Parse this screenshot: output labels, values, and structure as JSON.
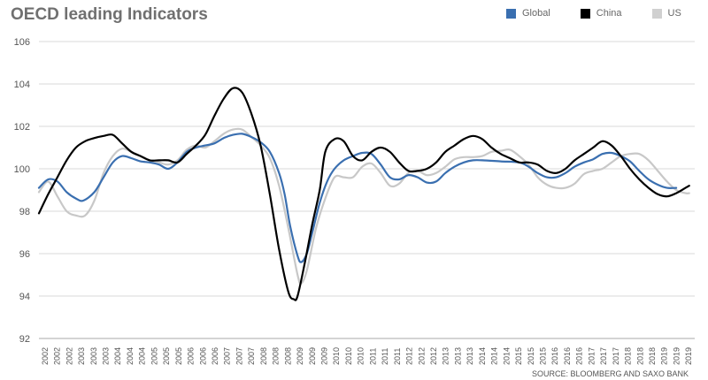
{
  "chart_data": {
    "type": "line",
    "title": "OECD leading Indicators",
    "source": "SOURCE: BLOOMBERG AND SAXO BANK",
    "ylim": [
      92,
      106
    ],
    "yticks": [
      92,
      94,
      96,
      98,
      100,
      102,
      104,
      106
    ],
    "xlim": [
      2002.0,
      2019.75
    ],
    "xtick_labels": [
      "2002",
      "2002",
      "2002",
      "2003",
      "2003",
      "2003",
      "2004",
      "2004",
      "2004",
      "2005",
      "2005",
      "2005",
      "2006",
      "2006",
      "2006",
      "2007",
      "2007",
      "2007",
      "2008",
      "2008",
      "2008",
      "2009",
      "2009",
      "2009",
      "2010",
      "2010",
      "2010",
      "2011",
      "2011",
      "2011",
      "2012",
      "2012",
      "2012",
      "2013",
      "2013",
      "2013",
      "2014",
      "2014",
      "2014",
      "2015",
      "2015",
      "2015",
      "2016",
      "2016",
      "2016",
      "2017",
      "2017",
      "2017",
      "2018",
      "2018",
      "2018",
      "2019",
      "2019",
      "2019"
    ],
    "grid": true,
    "legend_position": "top-right",
    "series": [
      {
        "name": "Global",
        "color": "#3a6fb0",
        "points": [
          [
            2002.0,
            99.1
          ],
          [
            2002.25,
            99.5
          ],
          [
            2002.5,
            99.4
          ],
          [
            2002.75,
            98.9
          ],
          [
            2003.0,
            98.6
          ],
          [
            2003.2,
            98.5
          ],
          [
            2003.5,
            98.9
          ],
          [
            2003.75,
            99.6
          ],
          [
            2004.0,
            100.3
          ],
          [
            2004.25,
            100.6
          ],
          [
            2004.5,
            100.5
          ],
          [
            2004.75,
            100.35
          ],
          [
            2005.0,
            100.3
          ],
          [
            2005.25,
            100.2
          ],
          [
            2005.5,
            100.0
          ],
          [
            2005.75,
            100.3
          ],
          [
            2006.0,
            100.8
          ],
          [
            2006.25,
            101.0
          ],
          [
            2006.5,
            101.1
          ],
          [
            2006.75,
            101.2
          ],
          [
            2007.0,
            101.45
          ],
          [
            2007.25,
            101.6
          ],
          [
            2007.5,
            101.65
          ],
          [
            2007.75,
            101.5
          ],
          [
            2008.0,
            101.25
          ],
          [
            2008.25,
            100.8
          ],
          [
            2008.5,
            99.8
          ],
          [
            2008.65,
            98.8
          ],
          [
            2008.8,
            97.3
          ],
          [
            2009.0,
            95.9
          ],
          [
            2009.1,
            95.6
          ],
          [
            2009.25,
            96.0
          ],
          [
            2009.4,
            97.0
          ],
          [
            2009.6,
            98.4
          ],
          [
            2009.8,
            99.4
          ],
          [
            2010.0,
            100.0
          ],
          [
            2010.25,
            100.4
          ],
          [
            2010.5,
            100.6
          ],
          [
            2010.75,
            100.75
          ],
          [
            2011.0,
            100.7
          ],
          [
            2011.25,
            100.2
          ],
          [
            2011.5,
            99.6
          ],
          [
            2011.75,
            99.5
          ],
          [
            2012.0,
            99.7
          ],
          [
            2012.25,
            99.6
          ],
          [
            2012.5,
            99.35
          ],
          [
            2012.75,
            99.4
          ],
          [
            2013.0,
            99.8
          ],
          [
            2013.25,
            100.1
          ],
          [
            2013.5,
            100.3
          ],
          [
            2013.75,
            100.4
          ],
          [
            2014.0,
            100.4
          ],
          [
            2014.5,
            100.35
          ],
          [
            2015.0,
            100.3
          ],
          [
            2015.25,
            100.1
          ],
          [
            2015.5,
            99.8
          ],
          [
            2015.75,
            99.6
          ],
          [
            2016.0,
            99.6
          ],
          [
            2016.25,
            99.8
          ],
          [
            2016.5,
            100.1
          ],
          [
            2016.75,
            100.3
          ],
          [
            2017.0,
            100.45
          ],
          [
            2017.25,
            100.7
          ],
          [
            2017.5,
            100.75
          ],
          [
            2017.75,
            100.6
          ],
          [
            2018.0,
            100.35
          ],
          [
            2018.25,
            99.9
          ],
          [
            2018.5,
            99.5
          ],
          [
            2018.75,
            99.25
          ],
          [
            2019.0,
            99.1
          ],
          [
            2019.25,
            99.1
          ]
        ]
      },
      {
        "name": "China",
        "color": "#000000",
        "points": [
          [
            2002.0,
            97.9
          ],
          [
            2002.25,
            98.8
          ],
          [
            2002.5,
            99.6
          ],
          [
            2002.75,
            100.4
          ],
          [
            2003.0,
            101.0
          ],
          [
            2003.25,
            101.3
          ],
          [
            2003.5,
            101.45
          ],
          [
            2003.75,
            101.55
          ],
          [
            2004.0,
            101.6
          ],
          [
            2004.25,
            101.2
          ],
          [
            2004.5,
            100.8
          ],
          [
            2004.75,
            100.6
          ],
          [
            2005.0,
            100.4
          ],
          [
            2005.25,
            100.4
          ],
          [
            2005.5,
            100.4
          ],
          [
            2005.75,
            100.3
          ],
          [
            2006.0,
            100.7
          ],
          [
            2006.25,
            101.1
          ],
          [
            2006.5,
            101.6
          ],
          [
            2006.75,
            102.5
          ],
          [
            2007.0,
            103.3
          ],
          [
            2007.25,
            103.8
          ],
          [
            2007.5,
            103.6
          ],
          [
            2007.75,
            102.6
          ],
          [
            2008.0,
            101.1
          ],
          [
            2008.25,
            98.8
          ],
          [
            2008.5,
            96.2
          ],
          [
            2008.75,
            94.2
          ],
          [
            2008.9,
            93.85
          ],
          [
            2009.0,
            94.0
          ],
          [
            2009.2,
            95.6
          ],
          [
            2009.4,
            97.4
          ],
          [
            2009.6,
            99.0
          ],
          [
            2009.75,
            100.8
          ],
          [
            2010.0,
            101.4
          ],
          [
            2010.25,
            101.3
          ],
          [
            2010.5,
            100.6
          ],
          [
            2010.75,
            100.4
          ],
          [
            2011.0,
            100.8
          ],
          [
            2011.25,
            101.0
          ],
          [
            2011.5,
            100.8
          ],
          [
            2011.75,
            100.3
          ],
          [
            2012.0,
            99.9
          ],
          [
            2012.25,
            99.9
          ],
          [
            2012.5,
            100.0
          ],
          [
            2012.75,
            100.3
          ],
          [
            2013.0,
            100.8
          ],
          [
            2013.25,
            101.1
          ],
          [
            2013.5,
            101.4
          ],
          [
            2013.75,
            101.55
          ],
          [
            2014.0,
            101.4
          ],
          [
            2014.25,
            101.0
          ],
          [
            2014.5,
            100.7
          ],
          [
            2014.75,
            100.5
          ],
          [
            2015.0,
            100.3
          ],
          [
            2015.25,
            100.3
          ],
          [
            2015.5,
            100.2
          ],
          [
            2015.75,
            99.9
          ],
          [
            2016.0,
            99.8
          ],
          [
            2016.25,
            100.0
          ],
          [
            2016.5,
            100.4
          ],
          [
            2016.75,
            100.7
          ],
          [
            2017.0,
            101.0
          ],
          [
            2017.25,
            101.3
          ],
          [
            2017.5,
            101.1
          ],
          [
            2017.75,
            100.6
          ],
          [
            2018.0,
            100.0
          ],
          [
            2018.25,
            99.5
          ],
          [
            2018.5,
            99.1
          ],
          [
            2018.75,
            98.8
          ],
          [
            2019.0,
            98.7
          ],
          [
            2019.25,
            98.85
          ],
          [
            2019.5,
            99.1
          ],
          [
            2019.6,
            99.2
          ]
        ]
      },
      {
        "name": "US",
        "color": "#c8c8c8",
        "points": [
          [
            2002.0,
            98.9
          ],
          [
            2002.25,
            99.4
          ],
          [
            2002.5,
            98.7
          ],
          [
            2002.75,
            98.0
          ],
          [
            2003.0,
            97.8
          ],
          [
            2003.25,
            97.8
          ],
          [
            2003.5,
            98.5
          ],
          [
            2003.75,
            99.8
          ],
          [
            2004.0,
            100.6
          ],
          [
            2004.25,
            100.95
          ],
          [
            2004.5,
            100.8
          ],
          [
            2004.75,
            100.6
          ],
          [
            2005.0,
            100.4
          ],
          [
            2005.25,
            100.3
          ],
          [
            2005.5,
            100.2
          ],
          [
            2005.75,
            100.4
          ],
          [
            2006.0,
            100.9
          ],
          [
            2006.25,
            101.1
          ],
          [
            2006.5,
            101.0
          ],
          [
            2006.75,
            101.3
          ],
          [
            2007.0,
            101.65
          ],
          [
            2007.25,
            101.85
          ],
          [
            2007.5,
            101.85
          ],
          [
            2007.75,
            101.5
          ],
          [
            2008.0,
            101.1
          ],
          [
            2008.25,
            100.5
          ],
          [
            2008.5,
            99.2
          ],
          [
            2008.75,
            97.2
          ],
          [
            2009.0,
            95.0
          ],
          [
            2009.1,
            94.6
          ],
          [
            2009.25,
            95.2
          ],
          [
            2009.5,
            97.2
          ],
          [
            2009.75,
            98.6
          ],
          [
            2010.0,
            99.6
          ],
          [
            2010.25,
            99.6
          ],
          [
            2010.5,
            99.6
          ],
          [
            2010.75,
            100.1
          ],
          [
            2011.0,
            100.25
          ],
          [
            2011.25,
            99.8
          ],
          [
            2011.5,
            99.2
          ],
          [
            2011.75,
            99.3
          ],
          [
            2012.0,
            99.8
          ],
          [
            2012.25,
            99.9
          ],
          [
            2012.5,
            99.7
          ],
          [
            2012.75,
            99.8
          ],
          [
            2013.0,
            100.1
          ],
          [
            2013.25,
            100.45
          ],
          [
            2013.5,
            100.55
          ],
          [
            2013.75,
            100.55
          ],
          [
            2014.0,
            100.6
          ],
          [
            2014.25,
            100.8
          ],
          [
            2014.5,
            100.85
          ],
          [
            2014.75,
            100.9
          ],
          [
            2015.0,
            100.6
          ],
          [
            2015.25,
            100.2
          ],
          [
            2015.5,
            99.6
          ],
          [
            2015.75,
            99.25
          ],
          [
            2016.0,
            99.1
          ],
          [
            2016.25,
            99.1
          ],
          [
            2016.5,
            99.3
          ],
          [
            2016.75,
            99.75
          ],
          [
            2017.0,
            99.9
          ],
          [
            2017.25,
            100.0
          ],
          [
            2017.5,
            100.3
          ],
          [
            2017.75,
            100.6
          ],
          [
            2018.0,
            100.7
          ],
          [
            2018.25,
            100.7
          ],
          [
            2018.5,
            100.4
          ],
          [
            2018.75,
            99.9
          ],
          [
            2019.0,
            99.4
          ],
          [
            2019.25,
            99.0
          ],
          [
            2019.5,
            98.85
          ],
          [
            2019.6,
            98.85
          ]
        ]
      }
    ]
  }
}
